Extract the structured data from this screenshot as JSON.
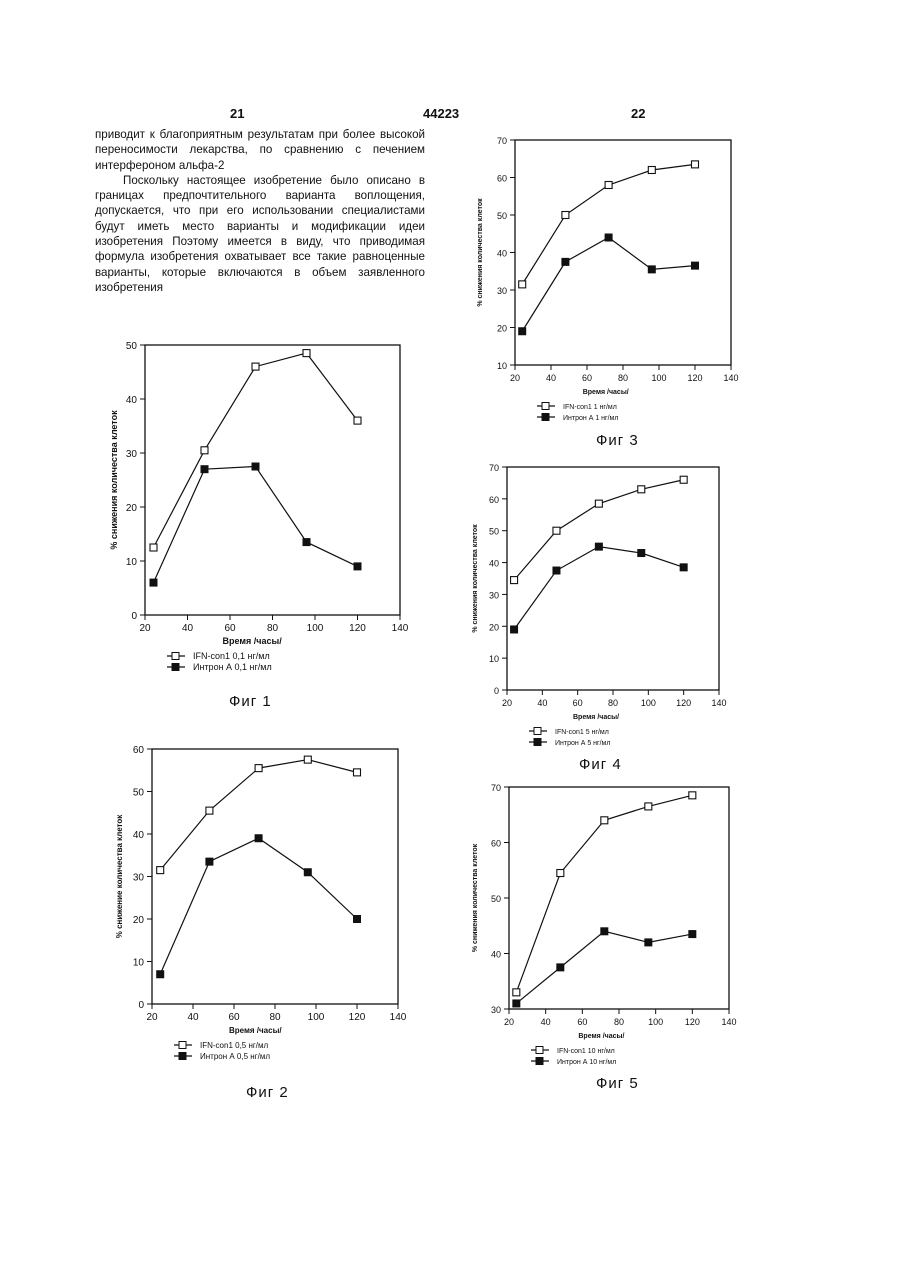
{
  "header": {
    "page_left": "21",
    "patent_no": "44223",
    "page_right": "22"
  },
  "text": {
    "para1": "приводит к благоприятным результатам при более высокой переносимости лекарства, по сравнению с печением интерфероном альфа-2",
    "para2": "Поскольку настоящее изобретение было описано в границах предпочтительного варианта воплощения, допускается, что при его использовании специалистами будут иметь место варианты и модификации идеи изобретения Поэтому имеется в виду, что приводимая формула изобретения охватывает все такие равноценные варианты, которые включаются в объем заявленного изобретения"
  },
  "chart_data": [
    {
      "id": "fig1",
      "type": "line",
      "caption": "Фиг 1",
      "xlabel": "Время /часы/",
      "ylabel": "% снижения количества клеток",
      "xlim": [
        20,
        140
      ],
      "ylim": [
        0,
        50
      ],
      "xticks": [
        "20",
        "40",
        "60",
        "80",
        "100",
        "120",
        "140"
      ],
      "yticks": [
        "0",
        "10",
        "20",
        "30",
        "40",
        "50"
      ],
      "series": [
        {
          "name": "IFN-con1 0,1 нг/мл",
          "marker": "open-square",
          "x": [
            24,
            48,
            72,
            96,
            120
          ],
          "y": [
            12.5,
            30.5,
            46,
            48.5,
            36
          ]
        },
        {
          "name": "Интрон А 0,1 нг/мл",
          "marker": "filled-square",
          "x": [
            24,
            48,
            72,
            96,
            120
          ],
          "y": [
            6,
            27,
            27.5,
            13.5,
            9
          ]
        }
      ]
    },
    {
      "id": "fig2",
      "type": "line",
      "caption": "Фиг 2",
      "xlabel": "Время /часы/",
      "ylabel": "% снижение количества клеток",
      "xlim": [
        20,
        140
      ],
      "ylim": [
        0,
        60
      ],
      "xticks": [
        "20",
        "40",
        "60",
        "80",
        "100",
        "120",
        "140"
      ],
      "yticks": [
        "0",
        "10",
        "20",
        "30",
        "40",
        "50",
        "60"
      ],
      "series": [
        {
          "name": "IFN-con1 0,5 нг/мл",
          "marker": "open-square",
          "x": [
            24,
            48,
            72,
            96,
            120
          ],
          "y": [
            31.5,
            45.5,
            55.5,
            57.5,
            54.5
          ]
        },
        {
          "name": "Интрон А 0,5 нг/мл",
          "marker": "filled-square",
          "x": [
            24,
            48,
            72,
            96,
            120
          ],
          "y": [
            7,
            33.5,
            39,
            31,
            20
          ]
        }
      ]
    },
    {
      "id": "fig3",
      "type": "line",
      "caption": "Фиг 3",
      "xlabel": "Время /часы/",
      "ylabel": "% снижения количества клеток",
      "xlim": [
        20,
        140
      ],
      "ylim": [
        10,
        70
      ],
      "xticks": [
        "20",
        "40",
        "60",
        "80",
        "100",
        "120",
        "140"
      ],
      "yticks": [
        "10",
        "20",
        "30",
        "40",
        "50",
        "60",
        "70"
      ],
      "series": [
        {
          "name": "IFN-con1 1 нг/мл",
          "marker": "open-square",
          "x": [
            24,
            48,
            72,
            96,
            120
          ],
          "y": [
            31.5,
            50,
            58,
            62,
            63.5
          ]
        },
        {
          "name": "Интрон А 1 нг/мл",
          "marker": "filled-square",
          "x": [
            24,
            48,
            72,
            96,
            120
          ],
          "y": [
            19,
            37.5,
            44,
            35.5,
            36.5
          ]
        }
      ]
    },
    {
      "id": "fig4",
      "type": "line",
      "caption": "Фиг 4",
      "xlabel": "Время /часы/",
      "ylabel": "% снижения количества клеток",
      "xlim": [
        20,
        140
      ],
      "ylim": [
        0,
        70
      ],
      "xticks": [
        "20",
        "40",
        "60",
        "80",
        "100",
        "120",
        "140"
      ],
      "yticks": [
        "0",
        "10",
        "20",
        "30",
        "40",
        "50",
        "60",
        "70"
      ],
      "series": [
        {
          "name": "IFN-con1 5 нг/мл",
          "marker": "open-square",
          "x": [
            24,
            48,
            72,
            96,
            120
          ],
          "y": [
            34.5,
            50,
            58.5,
            63,
            66
          ]
        },
        {
          "name": "Интрон А 5 нг/мл",
          "marker": "filled-square",
          "x": [
            24,
            48,
            72,
            96,
            120
          ],
          "y": [
            19,
            37.5,
            45,
            43,
            38.5
          ]
        }
      ]
    },
    {
      "id": "fig5",
      "type": "line",
      "caption": "Фиг 5",
      "xlabel": "Время /часы/",
      "ylabel": "% снижения количества клеток",
      "xlim": [
        20,
        140
      ],
      "ylim": [
        30,
        70
      ],
      "xticks": [
        "20",
        "40",
        "60",
        "80",
        "100",
        "120",
        "140"
      ],
      "yticks": [
        "30",
        "40",
        "50",
        "60",
        "70"
      ],
      "series": [
        {
          "name": "IFN-con1 10 нг/мл",
          "marker": "open-square",
          "x": [
            24,
            48,
            72,
            96,
            120
          ],
          "y": [
            33,
            54.5,
            64,
            66.5,
            68.5
          ]
        },
        {
          "name": "Интрон А 10 нг/мл",
          "marker": "filled-square",
          "x": [
            24,
            48,
            72,
            96,
            120
          ],
          "y": [
            31,
            37.5,
            44,
            42,
            43.5
          ]
        }
      ]
    }
  ]
}
